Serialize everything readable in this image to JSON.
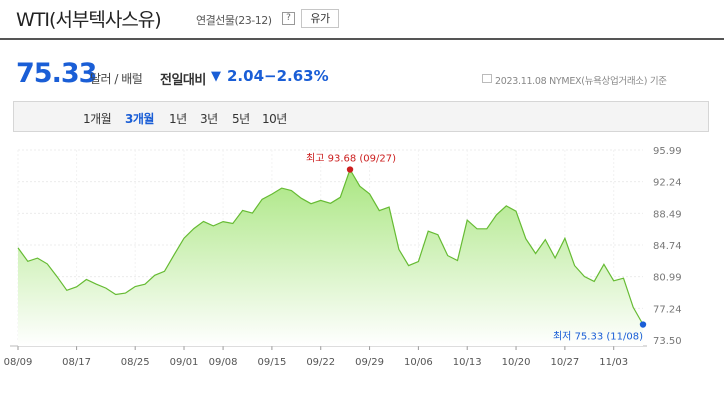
{
  "header": {
    "title": "WTI(서부텍사스유)",
    "subtitle": "연결선물(23-12)",
    "help_icon": "question-icon",
    "help_glyph": "?",
    "oil_button": "유가"
  },
  "quote": {
    "price": "75.33",
    "unit": "달러 / 배럴",
    "change_label": "전일대비",
    "change_arrow": "▼",
    "change_value": "2.04",
    "change_pct": "−2.63%",
    "date_note": "2023.11.08  NYMEX(뉴욕상업거래소) 기준",
    "colors": {
      "down": "#1a5ed6",
      "up": "#cc1f1f"
    }
  },
  "tabs": [
    {
      "label": "1개월",
      "active": false
    },
    {
      "label": "3개월",
      "active": true
    },
    {
      "label": "1년",
      "active": false
    },
    {
      "label": "3년",
      "active": false
    },
    {
      "label": "5년",
      "active": false
    },
    {
      "label": "10년",
      "active": false
    }
  ],
  "chart_data": {
    "type": "area",
    "title": "",
    "xlabel": "",
    "ylabel": "",
    "ylim": [
      73.5,
      95.99
    ],
    "y_ticks": [
      "95.99",
      "92.24",
      "88.49",
      "84.74",
      "80.99",
      "77.24",
      "73.50"
    ],
    "x_tick_labels": [
      "08/09",
      "08/17",
      "08/25",
      "09/01",
      "09/08",
      "09/15",
      "09/22",
      "09/29",
      "10/06",
      "10/13",
      "10/20",
      "10/27",
      "11/03"
    ],
    "x": [
      "08/09",
      "08/10",
      "08/11",
      "08/14",
      "08/15",
      "08/16",
      "08/17",
      "08/18",
      "08/21",
      "08/22",
      "08/23",
      "08/24",
      "08/25",
      "08/28",
      "08/29",
      "08/30",
      "08/31",
      "09/01",
      "09/05",
      "09/06",
      "09/07",
      "09/08",
      "09/11",
      "09/12",
      "09/13",
      "09/14",
      "09/15",
      "09/18",
      "09/19",
      "09/20",
      "09/21",
      "09/22",
      "09/25",
      "09/26",
      "09/27",
      "09/28",
      "09/29",
      "10/02",
      "10/03",
      "10/04",
      "10/05",
      "10/06",
      "10/09",
      "10/10",
      "10/11",
      "10/12",
      "10/13",
      "10/16",
      "10/17",
      "10/18",
      "10/19",
      "10/20",
      "10/23",
      "10/24",
      "10/25",
      "10/26",
      "10/27",
      "10/30",
      "10/31",
      "11/01",
      "11/02",
      "11/03",
      "11/06",
      "11/07",
      "11/08"
    ],
    "series": [
      {
        "values": [
          84.4,
          82.82,
          83.19,
          82.51,
          80.99,
          79.38,
          79.8,
          80.66,
          80.12,
          79.64,
          78.89,
          79.05,
          79.83,
          80.1,
          81.16,
          81.63,
          83.63,
          85.55,
          86.69,
          87.54,
          87.01,
          87.51,
          87.29,
          88.84,
          88.52,
          90.16,
          90.77,
          91.48,
          91.2,
          90.28,
          89.63,
          90.03,
          89.68,
          90.39,
          93.68,
          91.71,
          90.79,
          88.82,
          89.23,
          84.22,
          82.31,
          82.79,
          86.38,
          85.97,
          83.49,
          82.91,
          87.69,
          86.66,
          86.66,
          88.32,
          89.37,
          88.75,
          85.49,
          83.74,
          85.39,
          83.21,
          85.54,
          82.31,
          81.02,
          80.44,
          82.46,
          80.51,
          80.82,
          77.37,
          75.33
        ],
        "color": "#66bb33"
      }
    ],
    "annotations": [
      {
        "kind": "high",
        "label": "최고",
        "value": "93.68",
        "date": "(09/27)"
      },
      {
        "kind": "low",
        "label": "최저",
        "value": "75.33",
        "date": "(11/08)"
      }
    ],
    "grid": true
  }
}
